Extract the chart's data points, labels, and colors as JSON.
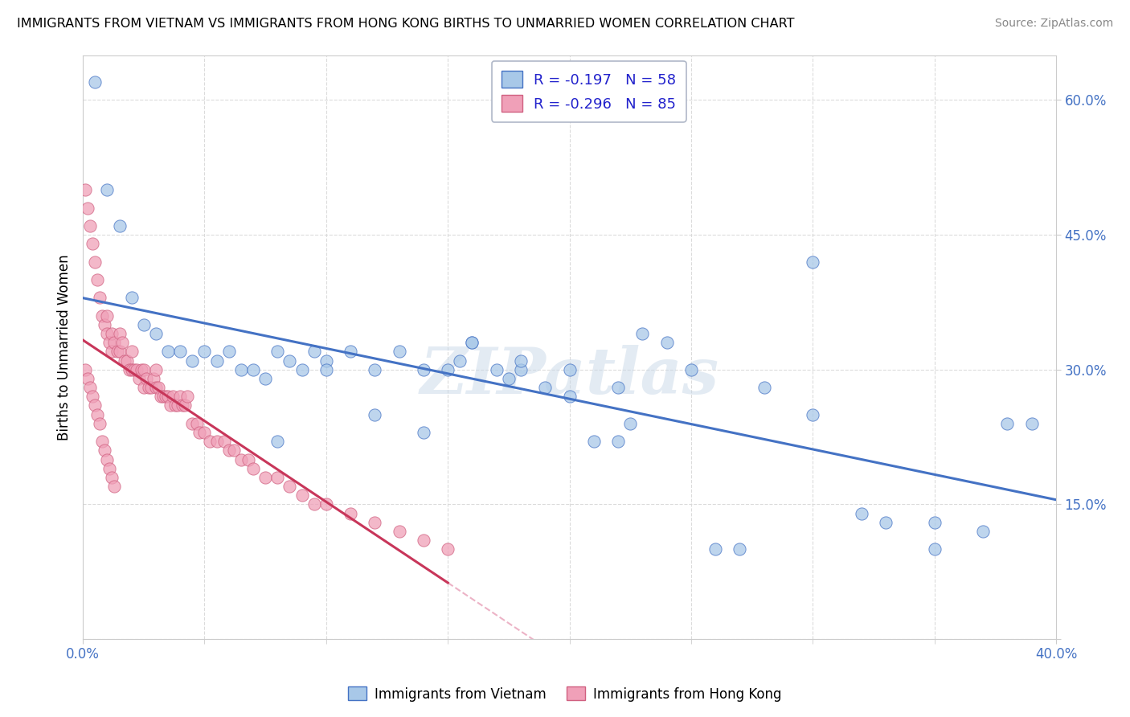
{
  "title": "IMMIGRANTS FROM VIETNAM VS IMMIGRANTS FROM HONG KONG BIRTHS TO UNMARRIED WOMEN CORRELATION CHART",
  "source": "Source: ZipAtlas.com",
  "ylabel": "Births to Unmarried Women",
  "y_ticks": [
    0.0,
    0.15,
    0.3,
    0.45,
    0.6
  ],
  "y_tick_labels": [
    "",
    "15.0%",
    "30.0%",
    "45.0%",
    "60.0%"
  ],
  "xmin": 0.0,
  "xmax": 0.4,
  "ymin": 0.0,
  "ymax": 0.65,
  "watermark": "ZIPatlas",
  "legend_r1": "-0.197",
  "legend_n1": "58",
  "legend_r2": "-0.296",
  "legend_n2": "85",
  "color_vietnam": "#a8c8e8",
  "color_hongkong": "#f0a0b8",
  "color_line_vietnam": "#4472c4",
  "color_line_hongkong": "#c8365a",
  "color_trendline_dashed": "#e8a0b8",
  "background_color": "#ffffff",
  "grid_color": "#d8d8d8",
  "vietnam_x": [
    0.005,
    0.01,
    0.015,
    0.02,
    0.025,
    0.03,
    0.035,
    0.04,
    0.045,
    0.05,
    0.055,
    0.06,
    0.065,
    0.07,
    0.075,
    0.08,
    0.085,
    0.09,
    0.095,
    0.1,
    0.11,
    0.12,
    0.13,
    0.14,
    0.15,
    0.155,
    0.16,
    0.17,
    0.175,
    0.18,
    0.19,
    0.2,
    0.21,
    0.22,
    0.225,
    0.23,
    0.24,
    0.25,
    0.26,
    0.27,
    0.28,
    0.3,
    0.32,
    0.33,
    0.35,
    0.38,
    0.39,
    0.08,
    0.1,
    0.12,
    0.14,
    0.16,
    0.18,
    0.2,
    0.22,
    0.3,
    0.35,
    0.37
  ],
  "vietnam_y": [
    0.62,
    0.5,
    0.46,
    0.38,
    0.35,
    0.34,
    0.32,
    0.32,
    0.31,
    0.32,
    0.31,
    0.32,
    0.3,
    0.3,
    0.29,
    0.32,
    0.31,
    0.3,
    0.32,
    0.31,
    0.32,
    0.3,
    0.32,
    0.3,
    0.3,
    0.31,
    0.33,
    0.3,
    0.29,
    0.3,
    0.28,
    0.27,
    0.22,
    0.22,
    0.24,
    0.34,
    0.33,
    0.3,
    0.1,
    0.1,
    0.28,
    0.42,
    0.14,
    0.13,
    0.1,
    0.24,
    0.24,
    0.22,
    0.3,
    0.25,
    0.23,
    0.33,
    0.31,
    0.3,
    0.28,
    0.25,
    0.13,
    0.12
  ],
  "hk_x": [
    0.001,
    0.002,
    0.003,
    0.004,
    0.005,
    0.006,
    0.007,
    0.008,
    0.009,
    0.01,
    0.01,
    0.011,
    0.012,
    0.012,
    0.013,
    0.014,
    0.015,
    0.015,
    0.016,
    0.017,
    0.018,
    0.019,
    0.02,
    0.02,
    0.021,
    0.022,
    0.023,
    0.024,
    0.025,
    0.025,
    0.026,
    0.027,
    0.028,
    0.029,
    0.03,
    0.03,
    0.031,
    0.032,
    0.033,
    0.034,
    0.035,
    0.036,
    0.037,
    0.038,
    0.039,
    0.04,
    0.041,
    0.042,
    0.043,
    0.045,
    0.047,
    0.048,
    0.05,
    0.052,
    0.055,
    0.058,
    0.06,
    0.062,
    0.065,
    0.068,
    0.07,
    0.075,
    0.08,
    0.085,
    0.09,
    0.095,
    0.1,
    0.11,
    0.12,
    0.13,
    0.14,
    0.15,
    0.001,
    0.002,
    0.003,
    0.004,
    0.005,
    0.006,
    0.007,
    0.008,
    0.009,
    0.01,
    0.011,
    0.012,
    0.013
  ],
  "hk_y": [
    0.5,
    0.48,
    0.46,
    0.44,
    0.42,
    0.4,
    0.38,
    0.36,
    0.35,
    0.34,
    0.36,
    0.33,
    0.32,
    0.34,
    0.33,
    0.32,
    0.32,
    0.34,
    0.33,
    0.31,
    0.31,
    0.3,
    0.32,
    0.3,
    0.3,
    0.3,
    0.29,
    0.3,
    0.3,
    0.28,
    0.29,
    0.28,
    0.28,
    0.29,
    0.3,
    0.28,
    0.28,
    0.27,
    0.27,
    0.27,
    0.27,
    0.26,
    0.27,
    0.26,
    0.26,
    0.27,
    0.26,
    0.26,
    0.27,
    0.24,
    0.24,
    0.23,
    0.23,
    0.22,
    0.22,
    0.22,
    0.21,
    0.21,
    0.2,
    0.2,
    0.19,
    0.18,
    0.18,
    0.17,
    0.16,
    0.15,
    0.15,
    0.14,
    0.13,
    0.12,
    0.11,
    0.1,
    0.3,
    0.29,
    0.28,
    0.27,
    0.26,
    0.25,
    0.24,
    0.22,
    0.21,
    0.2,
    0.19,
    0.18,
    0.17
  ]
}
